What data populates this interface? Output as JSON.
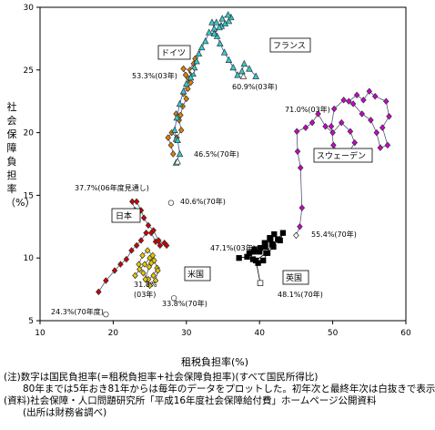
{
  "chart_data": {
    "type": "scatter",
    "xlabel": "租税負担率(%)",
    "ylabel": "社会保障負担率（%）",
    "xlim": [
      10,
      60
    ],
    "ylim": [
      5,
      30
    ],
    "xticks": [
      10,
      20,
      30,
      40,
      50,
      60
    ],
    "yticks": [
      5,
      10,
      15,
      20,
      25,
      30
    ],
    "grid": false,
    "series": [
      {
        "name": "日本",
        "marker": "diamond",
        "color": "#cc0000",
        "points": [
          [
            18.0,
            7.3
          ],
          [
            19.0,
            8.2
          ],
          [
            20.2,
            9.0
          ],
          [
            21.0,
            9.5
          ],
          [
            21.8,
            9.9
          ],
          [
            22.5,
            10.6
          ],
          [
            23.2,
            11.0
          ],
          [
            23.8,
            11.4
          ],
          [
            24.5,
            12.0
          ],
          [
            25.2,
            12.0
          ],
          [
            25.8,
            11.3
          ],
          [
            26.4,
            11.0
          ],
          [
            27.0,
            11.2
          ],
          [
            27.3,
            11.0
          ],
          [
            26.2,
            11.4
          ],
          [
            25.5,
            12.2
          ],
          [
            24.8,
            12.6
          ],
          [
            24.2,
            13.2
          ],
          [
            23.8,
            13.8
          ],
          [
            23.2,
            14.5
          ],
          [
            22.6,
            14.5
          ],
          [
            23.0,
            13.8
          ],
          [
            22.3,
            13.5
          ]
        ]
      },
      {
        "name": "米国",
        "marker": "diamond",
        "color": "#e6c800",
        "points": [
          [
            23.0,
            8.6
          ],
          [
            23.6,
            9.1
          ],
          [
            24.3,
            9.5
          ],
          [
            25.0,
            10.0
          ],
          [
            25.6,
            9.8
          ],
          [
            26.0,
            9.2
          ],
          [
            25.5,
            8.6
          ],
          [
            24.8,
            8.3
          ],
          [
            24.1,
            8.8
          ],
          [
            23.5,
            9.5
          ],
          [
            24.0,
            10.2
          ],
          [
            24.7,
            10.6
          ],
          [
            25.4,
            10.2
          ],
          [
            26.1,
            9.0
          ],
          [
            25.8,
            8.2
          ],
          [
            25.0,
            7.8
          ],
          [
            24.4,
            8.3
          ],
          [
            24.9,
            9.3
          ],
          [
            25.2,
            9.6
          ]
        ]
      },
      {
        "name": "英国",
        "marker": "square",
        "color": "#000000",
        "points": [
          [
            37.2,
            10.0
          ],
          [
            38.3,
            10.1
          ],
          [
            39.2,
            10.5
          ],
          [
            40.1,
            10.8
          ],
          [
            40.7,
            11.2
          ],
          [
            41.4,
            11.6
          ],
          [
            42.0,
            11.9
          ],
          [
            41.5,
            11.5
          ],
          [
            40.8,
            10.9
          ],
          [
            40.0,
            10.5
          ],
          [
            39.3,
            10.7
          ],
          [
            38.6,
            10.4
          ],
          [
            39.1,
            9.9
          ],
          [
            39.8,
            9.6
          ],
          [
            40.5,
            9.8
          ],
          [
            41.1,
            10.4
          ],
          [
            41.9,
            10.9
          ],
          [
            42.5,
            11.5
          ],
          [
            43.2,
            12.0
          ],
          [
            42.8,
            11.4
          ],
          [
            41.7,
            11.1
          ],
          [
            40.9,
            10.4
          ],
          [
            39.5,
            9.8
          ],
          [
            40.1,
            8.0
          ]
        ]
      },
      {
        "name": "スウェーデン",
        "marker": "diamond",
        "color": "#cc00cc",
        "points": [
          [
            45.0,
            11.8
          ],
          [
            45.5,
            12.5
          ],
          [
            45.8,
            14.0
          ],
          [
            45.6,
            17.2
          ],
          [
            45.2,
            18.5
          ],
          [
            45.1,
            20.1
          ],
          [
            46.3,
            20.4
          ],
          [
            47.2,
            20.8
          ],
          [
            48.0,
            21.5
          ],
          [
            49.0,
            20.5
          ],
          [
            50.0,
            20.0
          ],
          [
            51.2,
            20.8
          ],
          [
            52.4,
            20.1
          ],
          [
            53.0,
            19.2
          ],
          [
            52.2,
            18.4
          ],
          [
            51.0,
            18.1
          ],
          [
            50.1,
            19.0
          ],
          [
            49.8,
            20.5
          ],
          [
            50.2,
            21.9
          ],
          [
            51.5,
            22.6
          ],
          [
            52.8,
            22.3
          ],
          [
            54.0,
            21.5
          ],
          [
            55.2,
            21.0
          ],
          [
            56.0,
            20.0
          ],
          [
            56.5,
            18.8
          ],
          [
            57.5,
            19.0
          ],
          [
            56.8,
            20.4
          ],
          [
            57.7,
            21.3
          ],
          [
            57.3,
            22.5
          ],
          [
            55.8,
            22.9
          ],
          [
            55.0,
            23.3
          ],
          [
            54.2,
            22.6
          ],
          [
            53.3,
            23.0
          ],
          [
            52.2,
            22.5
          ]
        ]
      },
      {
        "name": "ドイツ",
        "marker": "diamond",
        "color": "#e08000",
        "points": [
          [
            28.2,
            18.3
          ],
          [
            27.9,
            19.0
          ],
          [
            27.5,
            19.6
          ],
          [
            28.0,
            20.0
          ],
          [
            28.7,
            19.6
          ],
          [
            29.3,
            20.2
          ],
          [
            29.0,
            21.0
          ],
          [
            28.6,
            21.5
          ],
          [
            29.2,
            21.4
          ],
          [
            29.5,
            22.1
          ],
          [
            30.0,
            22.7
          ],
          [
            29.6,
            23.1
          ],
          [
            30.2,
            23.5
          ],
          [
            30.6,
            24.0
          ],
          [
            30.3,
            24.3
          ],
          [
            30.7,
            24.8
          ],
          [
            31.0,
            25.5
          ],
          [
            31.2,
            25.9
          ],
          [
            30.5,
            25.0
          ],
          [
            29.6,
            25.1
          ],
          [
            29.9,
            24.6
          ]
        ]
      },
      {
        "name": "フランス",
        "marker": "triangle",
        "color": "#33cccc",
        "points": [
          [
            39.5,
            24.5
          ],
          [
            38.6,
            25.1
          ],
          [
            37.9,
            25.5
          ],
          [
            37.6,
            24.9
          ],
          [
            37.0,
            24.6
          ],
          [
            36.4,
            25.2
          ],
          [
            35.8,
            25.8
          ],
          [
            35.2,
            26.4
          ],
          [
            34.6,
            27.1
          ],
          [
            34.2,
            27.7
          ],
          [
            33.8,
            28.3
          ],
          [
            33.5,
            28.8
          ],
          [
            34.1,
            28.8
          ],
          [
            34.8,
            28.5
          ],
          [
            35.3,
            28.7
          ],
          [
            35.8,
            28.9
          ],
          [
            36.1,
            29.2
          ],
          [
            35.7,
            29.4
          ],
          [
            34.9,
            29.1
          ],
          [
            34.5,
            28.4
          ],
          [
            33.8,
            27.9
          ],
          [
            33.1,
            28.0
          ],
          [
            32.6,
            27.3
          ],
          [
            32.1,
            26.8
          ],
          [
            31.7,
            26.3
          ],
          [
            31.4,
            25.7
          ],
          [
            31.1,
            25.2
          ],
          [
            30.9,
            24.7
          ],
          [
            30.6,
            24.4
          ],
          [
            30.0,
            23.9
          ],
          [
            29.6,
            23.3
          ],
          [
            29.1,
            22.3
          ],
          [
            28.7,
            21.2
          ],
          [
            28.4,
            20.2
          ],
          [
            28.6,
            19.5
          ],
          [
            28.8,
            19.4
          ],
          [
            29.1,
            18.3
          ],
          [
            28.6,
            17.6
          ]
        ]
      }
    ],
    "hollow_points": [
      {
        "marker": "circle",
        "x": 19.0,
        "y": 5.5
      },
      {
        "marker": "circle",
        "x": 27.9,
        "y": 14.4
      },
      {
        "marker": "circle",
        "x": 28.3,
        "y": 6.8
      },
      {
        "marker": "square",
        "x": 40.1,
        "y": 8.0
      },
      {
        "marker": "triangle",
        "x": 28.8,
        "y": 17.7
      },
      {
        "marker": "triangle",
        "x": 37.8,
        "y": 24.5
      },
      {
        "marker": "diamond",
        "x": 30.8,
        "y": 24.9
      },
      {
        "marker": "diamond",
        "x": 45.0,
        "y": 11.8
      }
    ],
    "annotations": [
      {
        "text": "24.3%(70年度)"
      },
      {
        "text": "31.8%"
      },
      {
        "text": "(03年)"
      },
      {
        "text": "33.8%(70年)"
      },
      {
        "text": "37.7%(06年度見通し)"
      },
      {
        "text": "40.6%(70年)"
      },
      {
        "text": "46.5%(70年)"
      },
      {
        "text": "53.3%(03年)"
      },
      {
        "text": "60.9%(03年)"
      },
      {
        "text": "71.0%(03年)"
      },
      {
        "text": "55.4%(70年)"
      },
      {
        "text": "47.1%(03年)"
      },
      {
        "text": "48.1%(70年)"
      }
    ],
    "country_labels": [
      "日本",
      "米国",
      "英国",
      "スウェーデン",
      "ドイツ",
      "フランス"
    ]
  },
  "notes": [
    "(注)数字は国民負担率(=租税負担率+社会保障負担率)(すべて国民所得比)",
    "　　80年までは5年おき81年からは毎年のデータをプロットした。初年次と最終年次は白抜きで表示",
    "(資料)社会保障・人口問題研究所「平成16年度社会保障給付費」ホームページ公開資料",
    "　　(出所は財務省調べ)"
  ]
}
